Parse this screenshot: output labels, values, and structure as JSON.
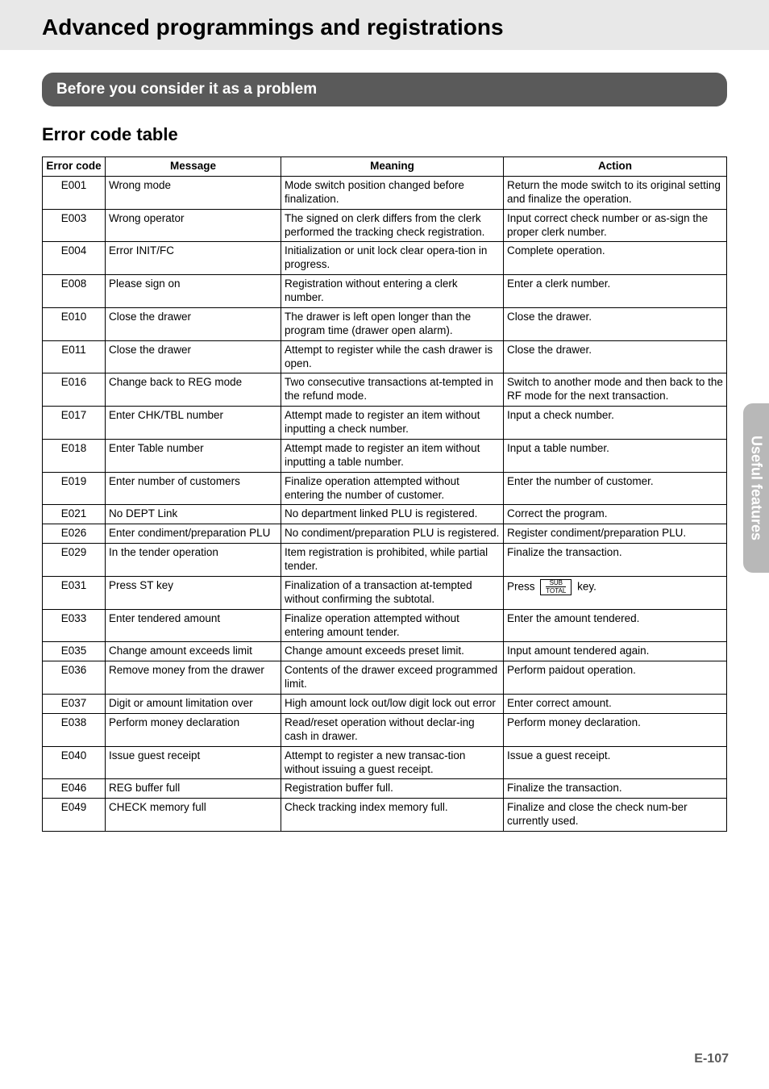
{
  "page_title": "Advanced programmings and registrations",
  "section_pill": "Before you consider it as a problem",
  "section_heading": "Error code table",
  "side_tab": "Useful features",
  "page_number": "E-107",
  "table": {
    "columns": [
      "Error code",
      "Message",
      "Meaning",
      "Action"
    ],
    "rows": [
      {
        "code": "E001",
        "message": "Wrong mode",
        "meaning": "Mode switch position changed before finalization.",
        "action": "Return the mode switch to its original setting and finalize the operation."
      },
      {
        "code": "E003",
        "message": "Wrong operator",
        "meaning": "The signed on clerk differs from the clerk performed the tracking check registration.",
        "action": "Input correct check number or as-sign the proper clerk number."
      },
      {
        "code": "E004",
        "message": "Error INIT/FC",
        "meaning": "Initialization or unit lock clear opera-tion in progress.",
        "action": "Complete operation."
      },
      {
        "code": "E008",
        "message": "Please sign on",
        "meaning": "Registration without entering a clerk number.",
        "action": "Enter a clerk number."
      },
      {
        "code": "E010",
        "message": "Close the drawer",
        "meaning": "The drawer is left open longer than the program time (drawer open alarm).",
        "action": "Close the drawer."
      },
      {
        "code": "E011",
        "message": "Close the drawer",
        "meaning": "Attempt to register while the cash drawer is open.",
        "action": "Close the drawer."
      },
      {
        "code": "E016",
        "message": "Change back to REG mode",
        "meaning": "Two consecutive transactions at-tempted in the refund mode.",
        "action": "Switch to another mode and then back to the RF mode for the next transaction."
      },
      {
        "code": "E017",
        "message": "Enter CHK/TBL number",
        "meaning": "Attempt made to register an item without inputting a check number.",
        "action": "Input a check number."
      },
      {
        "code": "E018",
        "message": "Enter Table number",
        "meaning": "Attempt made to register an item without inputting a table number.",
        "action": "Input a table number."
      },
      {
        "code": "E019",
        "message": "Enter number of customers",
        "meaning": "Finalize operation attempted without entering the number of customer.",
        "action": "Enter the number of customer."
      },
      {
        "code": "E021",
        "message": "No DEPT Link",
        "meaning": "No department linked PLU is registered.",
        "action": "Correct the program."
      },
      {
        "code": "E026",
        "message": "Enter condiment/preparation PLU",
        "meaning": "No condiment/preparation PLU is registered.",
        "action": "Register condiment/preparation PLU."
      },
      {
        "code": "E029",
        "message": "In the tender operation",
        "meaning": "Item registration is prohibited, while partial tender.",
        "action": "Finalize the transaction."
      },
      {
        "code": "E031",
        "message": "Press ST key",
        "meaning": "Finalization of a transaction at-tempted without confirming the subtotal.",
        "action_pre": "Press ",
        "action_key_sub": "SUB",
        "action_key_tot": "TOTAL",
        "action_post": " key.",
        "has_key": true
      },
      {
        "code": "E033",
        "message": "Enter tendered amount",
        "meaning": "Finalize operation attempted without entering amount tender.",
        "action": "Enter the amount tendered."
      },
      {
        "code": "E035",
        "message": "Change amount exceeds limit",
        "meaning": "Change amount exceeds preset limit.",
        "action": "Input amount tendered again."
      },
      {
        "code": "E036",
        "message": "Remove money from the drawer",
        "meaning": "Contents of the drawer exceed programmed limit.",
        "action": "Perform paidout operation."
      },
      {
        "code": "E037",
        "message": "Digit or amount limitation over",
        "meaning": "High amount lock out/low digit lock out error",
        "action": "Enter correct amount."
      },
      {
        "code": "E038",
        "message": "Perform money declaration",
        "meaning": "Read/reset operation without declar-ing cash in drawer.",
        "action": "Perform money declaration."
      },
      {
        "code": "E040",
        "message": "Issue guest receipt",
        "meaning": "Attempt to register a new transac-tion without issuing a guest receipt.",
        "action": "Issue a guest receipt."
      },
      {
        "code": "E046",
        "message": "REG buffer full",
        "meaning": "Registration buffer full.",
        "action": "Finalize the transaction."
      },
      {
        "code": "E049",
        "message": "CHECK memory full",
        "meaning": "Check tracking index memory full.",
        "action": "Finalize and close the check num-ber currently used."
      }
    ]
  }
}
